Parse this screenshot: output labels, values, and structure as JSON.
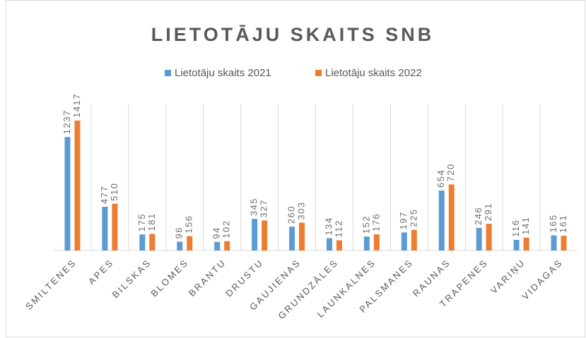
{
  "chart_data": {
    "type": "bar",
    "title": "LIETOTĀJU SKAITS SNB",
    "categories": [
      "SMILTENES",
      "APES",
      "BILSKAS",
      "BLOMES",
      "BRANTU",
      "DRUSTU",
      "GAUJIENAS",
      "GRUNDZĀLES",
      "LAUNKALNES",
      "PALSMANES",
      "RAUNAS",
      "TRAPENES",
      "VARIŅU",
      "VIDAGAS"
    ],
    "series": [
      {
        "name": "Lietotāju skaits 2021",
        "color": "#5b9bd5",
        "values": [
          1237,
          477,
          175,
          96,
          94,
          345,
          260,
          134,
          152,
          197,
          654,
          246,
          116,
          165
        ]
      },
      {
        "name": "Lietotāju skaits 2022",
        "color": "#ed7d31",
        "values": [
          1417,
          510,
          181,
          156,
          102,
          327,
          303,
          112,
          176,
          225,
          720,
          291,
          141,
          161
        ]
      }
    ],
    "ylim": [
      0,
      1600
    ],
    "legend": "top"
  }
}
